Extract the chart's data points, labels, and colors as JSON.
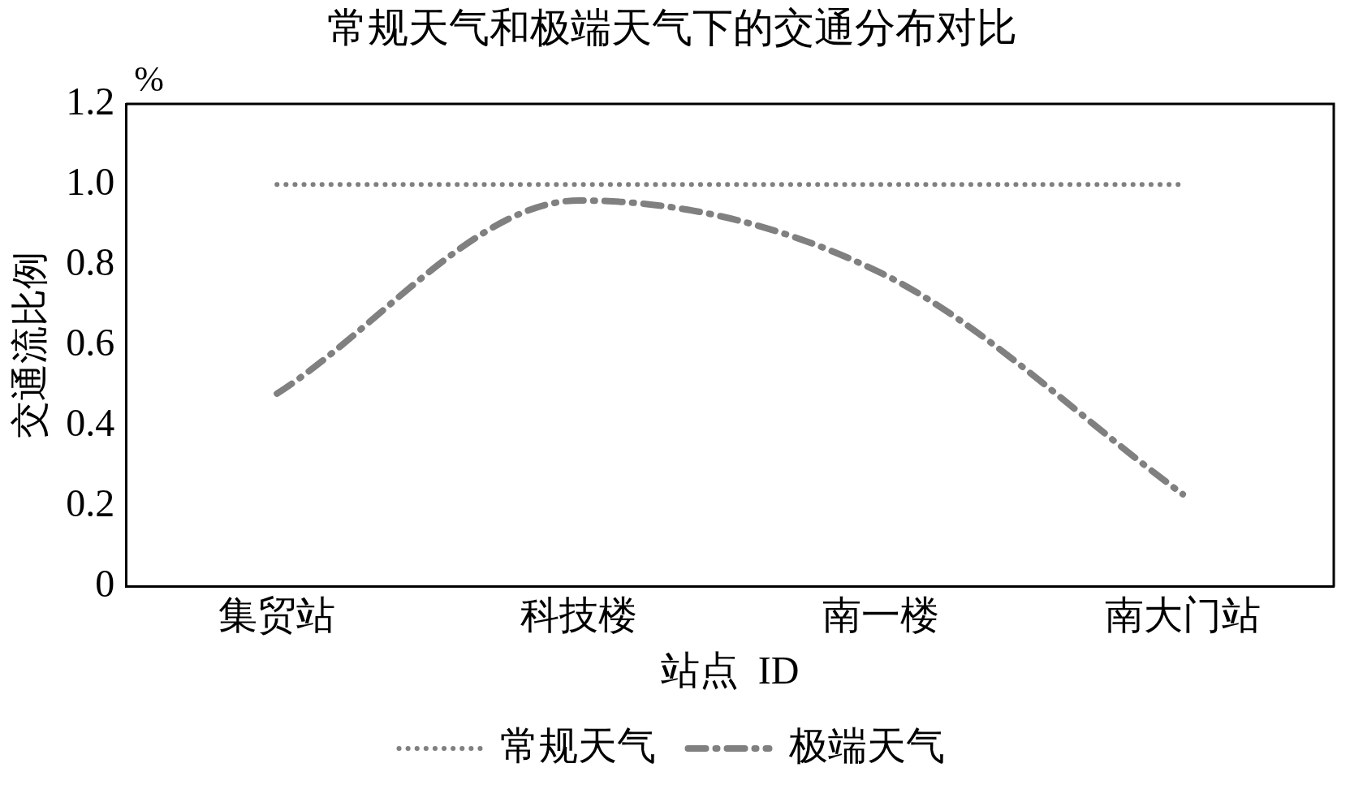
{
  "chart_data": {
    "type": "line",
    "title": "常规天气和极端天气下的交通分布对比",
    "xlabel": "站点  ID",
    "ylabel": "交通流比例",
    "annotations": [
      "%"
    ],
    "categories": [
      "集贸站",
      "科技楼",
      "南一楼",
      "南大门站"
    ],
    "series": [
      {
        "name": "常规天气",
        "color": "#808080",
        "values": [
          1,
          1,
          1,
          1
        ],
        "line_style": "dotted"
      },
      {
        "name": "极端天气",
        "color": "#808080",
        "values": [
          0.48,
          0.96,
          0.78,
          0.23
        ],
        "line_style": "dashed"
      }
    ],
    "ylim": [
      0,
      1.2
    ],
    "yticks": [
      0,
      0.2,
      0.4,
      0.6,
      0.8,
      {
        "value": 1,
        "label": "1.0"
      },
      1.2
    ],
    "grid": false,
    "legend": "bottom",
    "marker": "none"
  }
}
